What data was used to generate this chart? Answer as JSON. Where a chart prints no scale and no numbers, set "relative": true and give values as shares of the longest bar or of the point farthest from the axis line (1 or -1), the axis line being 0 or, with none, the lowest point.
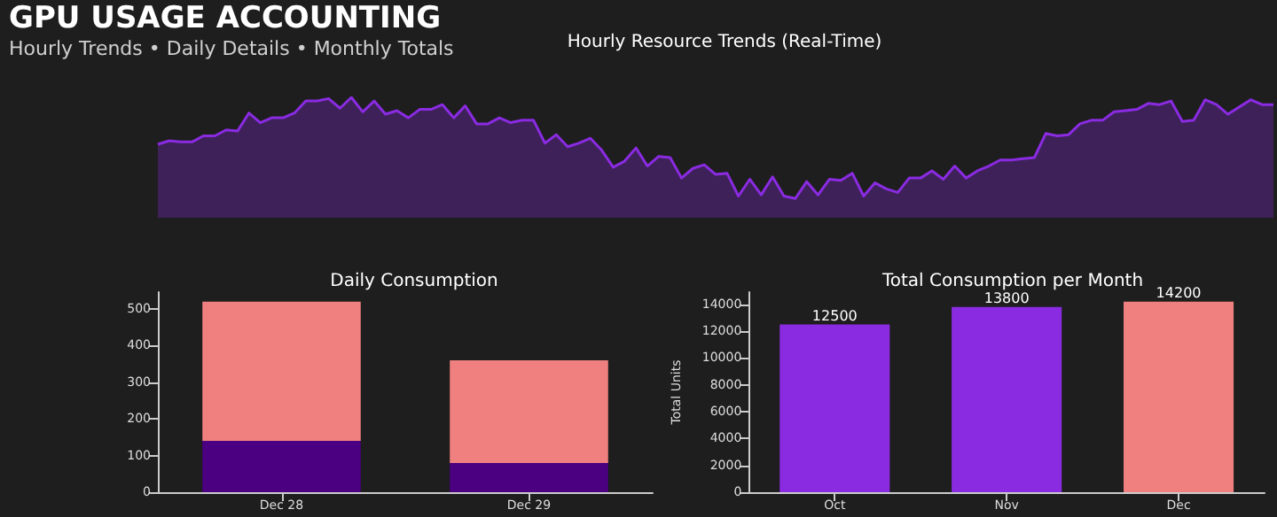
{
  "chart_data": [
    {
      "type": "area",
      "title": "Hourly Resource Trends (Real-Time)",
      "relative": true,
      "grid": false,
      "annotations": [
        "GPU USAGE ACCOUNTING",
        "Hourly Trends • Daily Details • Monthly Totals"
      ],
      "categories": [
        null,
        null,
        null,
        null,
        null,
        null,
        null,
        null,
        null,
        null,
        null,
        null,
        null,
        null,
        null,
        null,
        null,
        null,
        null,
        null,
        null,
        null,
        null,
        null,
        null,
        null,
        null,
        null,
        null,
        null,
        null,
        null,
        null,
        null,
        null,
        null,
        null,
        null,
        null,
        null,
        null,
        null,
        null,
        null,
        null,
        null,
        null,
        null,
        null,
        null,
        null,
        null,
        null,
        null,
        null,
        null,
        null,
        null,
        null,
        null,
        null,
        null,
        null,
        null,
        null,
        null,
        null,
        null,
        null,
        null,
        null,
        null,
        null,
        null,
        null,
        null,
        null,
        null,
        null,
        null,
        null,
        null,
        null,
        null,
        null,
        null,
        null,
        null,
        null,
        null,
        null,
        null,
        null,
        null,
        null,
        null,
        null,
        null,
        null
      ],
      "series": [
        {
          "color": "#8a2be2",
          "values": [
            0.61,
            0.64,
            0.63,
            0.63,
            0.68,
            0.68,
            0.73,
            0.72,
            0.87,
            0.79,
            0.83,
            0.83,
            0.87,
            0.97,
            0.97,
            0.99,
            0.91,
            1,
            0.88,
            0.97,
            0.86,
            0.89,
            0.83,
            0.9,
            0.9,
            0.94,
            0.83,
            0.93,
            0.78,
            0.78,
            0.83,
            0.79,
            0.81,
            0.81,
            0.62,
            0.69,
            0.59,
            0.62,
            0.66,
            0.56,
            0.42,
            0.47,
            0.58,
            0.43,
            0.51,
            0.5,
            0.33,
            0.41,
            0.44,
            0.36,
            0.37,
            0.18,
            0.32,
            0.19,
            0.34,
            0.18,
            0.16,
            0.3,
            0.19,
            0.32,
            0.31,
            0.37,
            0.18,
            0.29,
            0.24,
            0.21,
            0.33,
            0.33,
            0.39,
            0.32,
            0.43,
            0.33,
            0.39,
            0.43,
            0.48,
            0.48,
            0.49,
            0.5,
            0.7,
            0.68,
            0.69,
            0.78,
            0.81,
            0.81,
            0.88,
            0.89,
            0.9,
            0.95,
            0.94,
            0.97,
            0.8,
            0.81,
            0.98,
            0.94,
            0.86,
            0.92,
            0.98,
            0.94,
            0.94
          ]
        }
      ]
    },
    {
      "type": "bar",
      "title": "Daily Consumption",
      "stacked": true,
      "grid": false,
      "categories": [
        "Dec 28",
        "Dec 29"
      ],
      "ylim": [
        0,
        546
      ],
      "yticks": [
        0,
        100,
        200,
        300,
        400,
        500
      ],
      "series": [
        {
          "color": "#4b0082",
          "values": [
            140,
            80
          ]
        },
        {
          "color": "#f08080",
          "values": [
            380,
            280
          ]
        }
      ]
    },
    {
      "type": "bar",
      "title": "Total Consumption per Month",
      "ylabel": "Total Units",
      "grid": false,
      "data_labels": true,
      "categories": [
        "Oct",
        "Nov",
        "Dec"
      ],
      "ylim": [
        0,
        14910
      ],
      "yticks": [
        0,
        2000,
        4000,
        6000,
        8000,
        10000,
        12000,
        14000
      ],
      "values": [
        12500,
        13800,
        14200
      ],
      "colors": [
        "#8a2be2",
        "#8a2be2",
        "#f08080"
      ]
    }
  ]
}
